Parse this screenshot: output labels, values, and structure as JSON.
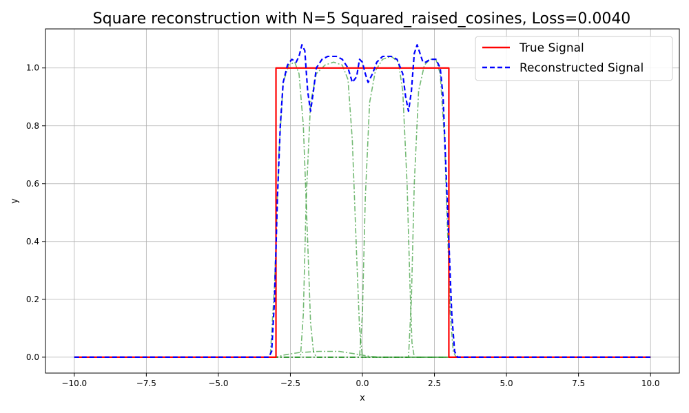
{
  "chart_data": {
    "type": "line",
    "title": "Square reconstruction with N=5 Squared_raised_cosines, Loss=0.0040",
    "xlabel": "x",
    "ylabel": "y",
    "xlim": [
      -11.0,
      11.0
    ],
    "ylim": [
      -0.055,
      1.135
    ],
    "xticks": [
      -10.0,
      -7.5,
      -5.0,
      -2.5,
      0.0,
      2.5,
      5.0,
      7.5,
      10.0
    ],
    "xtick_labels": [
      "−10.0",
      "−7.5",
      "−5.0",
      "−2.5",
      "0.0",
      "2.5",
      "5.0",
      "7.5",
      "10.0"
    ],
    "yticks": [
      0.0,
      0.2,
      0.4,
      0.6,
      0.8,
      1.0
    ],
    "ytick_labels": [
      "0.0",
      "0.2",
      "0.4",
      "0.6",
      "0.8",
      "1.0"
    ],
    "grid": true,
    "legend": {
      "placement": "top-right",
      "entries": [
        "True Signal",
        "Reconstructed Signal"
      ]
    },
    "colors": {
      "true_signal": "#ff0000",
      "reconstructed": "#0000ff",
      "basis": "#008000"
    },
    "series": [
      {
        "name": "True Signal",
        "style": "solid",
        "points": [
          [
            -10,
            0
          ],
          [
            -3.0,
            0
          ],
          [
            -3.0,
            1.0
          ],
          [
            3.0,
            1.0
          ],
          [
            3.0,
            0
          ],
          [
            10,
            0
          ]
        ]
      },
      {
        "name": "Reconstructed Signal",
        "style": "dashed",
        "points": [
          [
            -10,
            0
          ],
          [
            -3.25,
            0
          ],
          [
            -3.15,
            0.02
          ],
          [
            -3.05,
            0.2
          ],
          [
            -2.95,
            0.55
          ],
          [
            -2.85,
            0.8
          ],
          [
            -2.75,
            0.95
          ],
          [
            -2.6,
            1.01
          ],
          [
            -2.45,
            1.03
          ],
          [
            -2.3,
            1.02
          ],
          [
            -2.2,
            1.04
          ],
          [
            -2.1,
            1.08
          ],
          [
            -2.0,
            1.06
          ],
          [
            -1.9,
            0.92
          ],
          [
            -1.8,
            0.85
          ],
          [
            -1.7,
            0.92
          ],
          [
            -1.6,
            1.0
          ],
          [
            -1.4,
            1.03
          ],
          [
            -1.2,
            1.04
          ],
          [
            -0.9,
            1.04
          ],
          [
            -0.7,
            1.03
          ],
          [
            -0.5,
            1.0
          ],
          [
            -0.35,
            0.95
          ],
          [
            -0.2,
            0.97
          ],
          [
            -0.1,
            1.03
          ],
          [
            0.0,
            1.02
          ],
          [
            0.1,
            0.98
          ],
          [
            0.2,
            0.95
          ],
          [
            0.35,
            0.98
          ],
          [
            0.5,
            1.02
          ],
          [
            0.7,
            1.04
          ],
          [
            1.0,
            1.04
          ],
          [
            1.2,
            1.03
          ],
          [
            1.4,
            0.98
          ],
          [
            1.5,
            0.9
          ],
          [
            1.6,
            0.85
          ],
          [
            1.7,
            0.92
          ],
          [
            1.8,
            1.05
          ],
          [
            1.9,
            1.08
          ],
          [
            2.0,
            1.05
          ],
          [
            2.1,
            1.02
          ],
          [
            2.2,
            1.02
          ],
          [
            2.35,
            1.03
          ],
          [
            2.55,
            1.03
          ],
          [
            2.7,
            1.0
          ],
          [
            2.8,
            0.9
          ],
          [
            2.9,
            0.65
          ],
          [
            3.0,
            0.4
          ],
          [
            3.1,
            0.15
          ],
          [
            3.2,
            0.02
          ],
          [
            3.3,
            0
          ],
          [
            10,
            0
          ]
        ]
      },
      {
        "name": "",
        "style": "dashdot",
        "points": [
          [
            -10,
            0
          ],
          [
            -3.2,
            0
          ],
          [
            -3.05,
            0.25
          ],
          [
            -2.9,
            0.7
          ],
          [
            -2.75,
            0.95
          ],
          [
            -2.55,
            1.01
          ],
          [
            -2.35,
            1.02
          ],
          [
            -2.2,
            0.98
          ],
          [
            -2.05,
            0.8
          ],
          [
            -1.9,
            0.4
          ],
          [
            -1.8,
            0.12
          ],
          [
            -1.7,
            0.02
          ],
          [
            -1.6,
            0
          ],
          [
            10,
            0
          ]
        ]
      },
      {
        "name": "",
        "style": "dashdot",
        "points": [
          [
            -10,
            0
          ],
          [
            -2.15,
            0
          ],
          [
            -2.05,
            0.15
          ],
          [
            -1.95,
            0.55
          ],
          [
            -1.8,
            0.88
          ],
          [
            -1.6,
            0.98
          ],
          [
            -1.3,
            1.01
          ],
          [
            -1.0,
            1.02
          ],
          [
            -0.7,
            1.01
          ],
          [
            -0.5,
            0.96
          ],
          [
            -0.35,
            0.75
          ],
          [
            -0.2,
            0.35
          ],
          [
            -0.1,
            0.1
          ],
          [
            0.0,
            0.0
          ],
          [
            10,
            0
          ]
        ]
      },
      {
        "name": "",
        "style": "dashdot",
        "points": [
          [
            -10,
            0
          ],
          [
            -0.1,
            0
          ],
          [
            0.0,
            0.15
          ],
          [
            0.1,
            0.55
          ],
          [
            0.25,
            0.88
          ],
          [
            0.45,
            0.99
          ],
          [
            0.7,
            1.03
          ],
          [
            1.0,
            1.04
          ],
          [
            1.25,
            1.02
          ],
          [
            1.4,
            0.92
          ],
          [
            1.55,
            0.6
          ],
          [
            1.65,
            0.25
          ],
          [
            1.72,
            0.05
          ],
          [
            1.8,
            0
          ],
          [
            10,
            0
          ]
        ]
      },
      {
        "name": "",
        "style": "dashdot",
        "points": [
          [
            -10,
            0
          ],
          [
            1.6,
            0
          ],
          [
            1.7,
            0.2
          ],
          [
            1.8,
            0.6
          ],
          [
            1.95,
            0.92
          ],
          [
            2.15,
            1.01
          ],
          [
            2.35,
            1.03
          ],
          [
            2.55,
            1.03
          ],
          [
            2.7,
            0.98
          ],
          [
            2.85,
            0.75
          ],
          [
            2.95,
            0.45
          ],
          [
            3.05,
            0.15
          ],
          [
            3.15,
            0.02
          ],
          [
            3.25,
            0
          ],
          [
            10,
            0
          ]
        ]
      },
      {
        "name": "",
        "style": "dashdot",
        "points": [
          [
            -10,
            0
          ],
          [
            -3.0,
            0
          ],
          [
            -2.7,
            0.008
          ],
          [
            -2.2,
            0.016
          ],
          [
            -1.5,
            0.02
          ],
          [
            -0.8,
            0.02
          ],
          [
            -0.3,
            0.012
          ],
          [
            0.3,
            0.002
          ],
          [
            0.6,
            0
          ],
          [
            10,
            0
          ]
        ]
      }
    ]
  }
}
